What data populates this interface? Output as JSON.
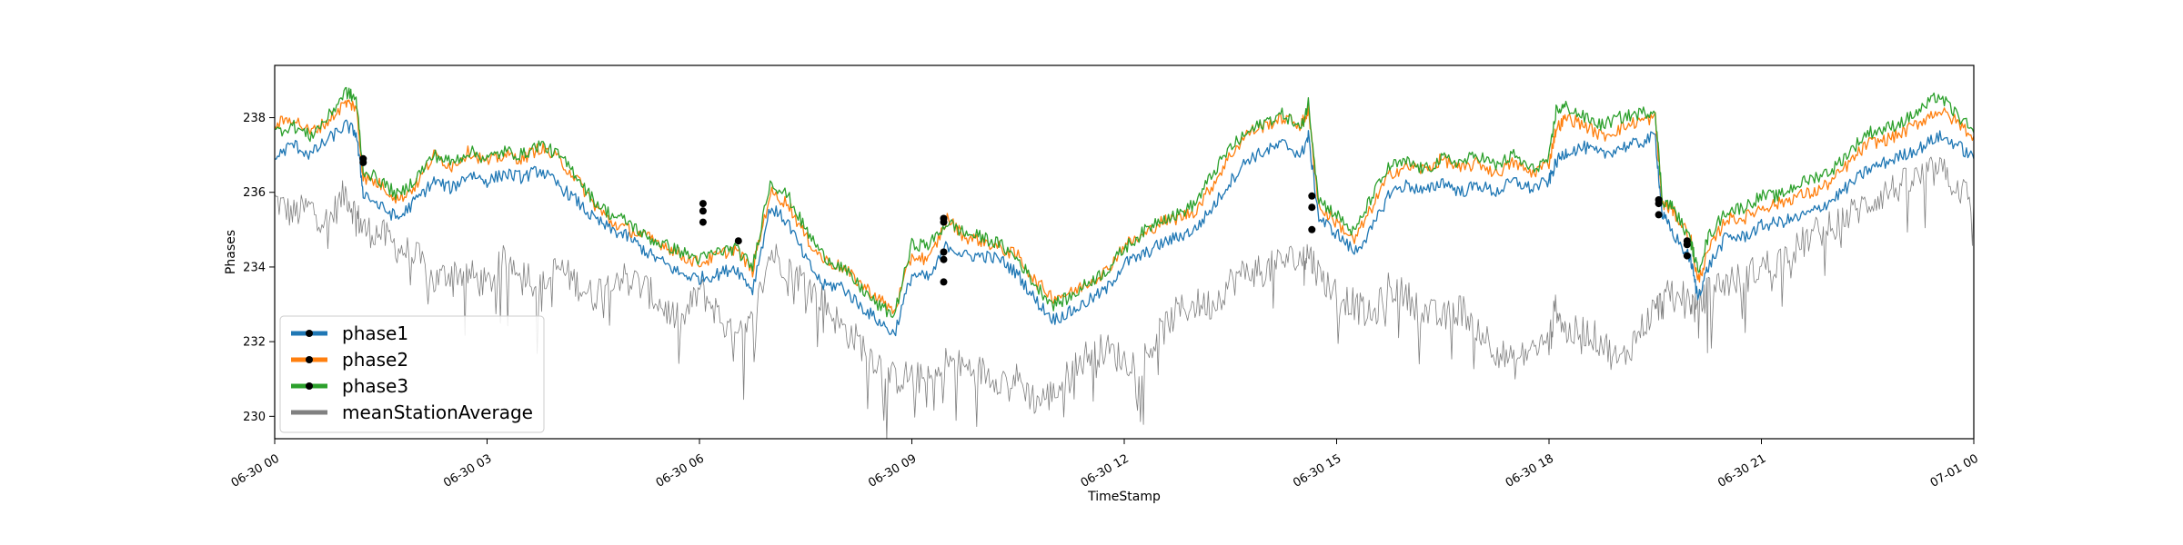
{
  "chart_data": {
    "type": "line",
    "title": "",
    "xlabel": "TimeStamp",
    "ylabel": "Phases",
    "x_range": [
      "06-30 00:00",
      "07-01 00:00"
    ],
    "ylim": [
      229.4,
      239.4
    ],
    "x_ticks": [
      {
        "label": "06-30 00",
        "hour": 0
      },
      {
        "label": "06-30 03",
        "hour": 3
      },
      {
        "label": "06-30 06",
        "hour": 6
      },
      {
        "label": "06-30 09",
        "hour": 9
      },
      {
        "label": "06-30 12",
        "hour": 12
      },
      {
        "label": "06-30 15",
        "hour": 15
      },
      {
        "label": "06-30 18",
        "hour": 18
      },
      {
        "label": "06-30 21",
        "hour": 21
      },
      {
        "label": "07-01 00",
        "hour": 24
      }
    ],
    "y_ticks": [
      230,
      232,
      234,
      236,
      238
    ],
    "grid": false,
    "legend_position": "lower-left",
    "colors": {
      "phase1": "#1f77b4",
      "phase2": "#ff7f0e",
      "phase3": "#2ca02c",
      "meanStationAverage": "#808080",
      "marker": "#000000"
    },
    "series": [
      {
        "name": "phase1",
        "x": [
          0,
          0.25,
          0.5,
          0.75,
          1.0,
          1.15,
          1.25,
          1.5,
          1.75,
          2.0,
          2.25,
          2.5,
          2.75,
          3.0,
          3.25,
          3.5,
          3.75,
          4.0,
          4.25,
          4.5,
          4.75,
          5.0,
          5.25,
          5.5,
          5.75,
          6.0,
          6.25,
          6.5,
          6.75,
          7.0,
          7.25,
          7.5,
          7.75,
          8.0,
          8.25,
          8.5,
          8.75,
          9.0,
          9.25,
          9.5,
          9.75,
          10.0,
          10.25,
          10.5,
          10.75,
          11.0,
          11.25,
          11.5,
          11.75,
          12.0,
          12.25,
          12.5,
          12.75,
          13.0,
          13.25,
          13.5,
          13.75,
          14.0,
          14.25,
          14.5,
          14.6,
          14.75,
          15.0,
          15.25,
          15.5,
          15.75,
          16.0,
          16.25,
          16.5,
          16.75,
          17.0,
          17.25,
          17.5,
          17.75,
          18.0,
          18.1,
          18.25,
          18.5,
          18.75,
          19.0,
          19.25,
          19.5,
          19.6,
          19.75,
          20.0,
          20.1,
          20.25,
          20.5,
          20.75,
          21.0,
          21.25,
          21.5,
          21.75,
          22.0,
          22.25,
          22.5,
          22.75,
          23.0,
          23.25,
          23.5,
          23.75,
          24.0
        ],
        "y": [
          236.9,
          237.3,
          237.0,
          237.4,
          237.8,
          237.6,
          236.0,
          235.6,
          235.3,
          235.8,
          236.3,
          236.1,
          236.5,
          236.3,
          236.5,
          236.4,
          236.6,
          236.2,
          235.8,
          235.3,
          235.0,
          234.8,
          234.4,
          234.1,
          233.8,
          233.7,
          233.8,
          234.0,
          233.4,
          235.6,
          235.2,
          234.2,
          233.5,
          233.5,
          233.0,
          232.6,
          232.2,
          233.8,
          233.7,
          234.6,
          234.3,
          234.3,
          234.2,
          233.8,
          233.1,
          232.6,
          232.8,
          233.1,
          233.4,
          234.1,
          234.3,
          234.6,
          234.8,
          235.0,
          235.6,
          236.3,
          236.9,
          237.1,
          237.3,
          237.0,
          237.5,
          235.3,
          234.9,
          234.4,
          235.0,
          236.0,
          236.2,
          236.0,
          236.3,
          236.0,
          236.2,
          236.0,
          236.3,
          236.1,
          236.3,
          236.8,
          237.1,
          237.2,
          237.0,
          237.2,
          237.3,
          237.5,
          235.4,
          234.9,
          234.2,
          233.2,
          234.0,
          234.8,
          234.8,
          235.1,
          235.2,
          235.3,
          235.5,
          235.8,
          236.2,
          236.6,
          236.8,
          237.0,
          237.2,
          237.5,
          237.3,
          236.9
        ]
      },
      {
        "name": "phase2",
        "x": [
          0,
          0.25,
          0.5,
          0.75,
          1.0,
          1.15,
          1.25,
          1.5,
          1.75,
          2.0,
          2.25,
          2.5,
          2.75,
          3.0,
          3.25,
          3.5,
          3.75,
          4.0,
          4.25,
          4.5,
          4.75,
          5.0,
          5.25,
          5.5,
          5.75,
          6.0,
          6.25,
          6.5,
          6.75,
          7.0,
          7.25,
          7.5,
          7.75,
          8.0,
          8.25,
          8.5,
          8.75,
          9.0,
          9.25,
          9.5,
          9.75,
          10.0,
          10.25,
          10.5,
          10.75,
          11.0,
          11.25,
          11.5,
          11.75,
          12.0,
          12.25,
          12.5,
          12.75,
          13.0,
          13.25,
          13.5,
          13.75,
          14.0,
          14.25,
          14.5,
          14.6,
          14.75,
          15.0,
          15.25,
          15.5,
          15.75,
          16.0,
          16.25,
          16.5,
          16.75,
          17.0,
          17.25,
          17.5,
          17.75,
          18.0,
          18.1,
          18.25,
          18.5,
          18.75,
          19.0,
          19.25,
          19.5,
          19.6,
          19.75,
          20.0,
          20.1,
          20.25,
          20.5,
          20.75,
          21.0,
          21.25,
          21.5,
          21.75,
          22.0,
          22.25,
          22.5,
          22.75,
          23.0,
          23.25,
          23.5,
          23.75,
          24.0
        ],
        "y": [
          237.8,
          238.0,
          237.6,
          237.9,
          238.4,
          238.3,
          236.4,
          236.2,
          235.8,
          236.2,
          237.0,
          236.7,
          237.1,
          236.8,
          237.0,
          236.9,
          237.2,
          236.9,
          236.4,
          235.7,
          235.2,
          235.0,
          234.8,
          234.6,
          234.3,
          234.1,
          234.3,
          234.5,
          233.9,
          236.0,
          235.7,
          234.8,
          234.2,
          234.0,
          233.6,
          233.2,
          232.8,
          234.3,
          234.2,
          235.3,
          234.8,
          234.7,
          234.5,
          234.3,
          233.6,
          233.2,
          233.3,
          233.6,
          233.9,
          234.6,
          234.8,
          235.2,
          235.3,
          235.5,
          236.2,
          237.0,
          237.6,
          237.8,
          238.0,
          237.8,
          238.2,
          235.6,
          235.2,
          234.7,
          235.6,
          236.5,
          236.7,
          236.6,
          236.9,
          236.6,
          236.8,
          236.5,
          236.8,
          236.5,
          236.8,
          237.7,
          238.0,
          237.8,
          237.5,
          237.7,
          237.9,
          238.0,
          235.7,
          235.5,
          234.8,
          233.6,
          234.4,
          235.3,
          235.3,
          235.6,
          235.7,
          235.9,
          236.0,
          236.3,
          236.8,
          237.3,
          237.4,
          237.6,
          237.9,
          238.2,
          237.9,
          237.5
        ]
      },
      {
        "name": "phase3",
        "x": [
          0,
          0.25,
          0.5,
          0.75,
          1.0,
          1.15,
          1.25,
          1.5,
          1.75,
          2.0,
          2.25,
          2.5,
          2.75,
          3.0,
          3.25,
          3.5,
          3.75,
          4.0,
          4.25,
          4.5,
          4.75,
          5.0,
          5.25,
          5.5,
          5.75,
          6.0,
          6.25,
          6.5,
          6.75,
          7.0,
          7.25,
          7.5,
          7.75,
          8.0,
          8.25,
          8.5,
          8.75,
          9.0,
          9.25,
          9.5,
          9.75,
          10.0,
          10.25,
          10.5,
          10.75,
          11.0,
          11.25,
          11.5,
          11.75,
          12.0,
          12.25,
          12.5,
          12.75,
          13.0,
          13.25,
          13.5,
          13.75,
          14.0,
          14.25,
          14.5,
          14.6,
          14.75,
          15.0,
          15.25,
          15.5,
          15.75,
          16.0,
          16.25,
          16.5,
          16.75,
          17.0,
          17.25,
          17.5,
          17.75,
          18.0,
          18.1,
          18.25,
          18.5,
          18.75,
          19.0,
          19.25,
          19.5,
          19.6,
          19.75,
          20.0,
          20.1,
          20.25,
          20.5,
          20.75,
          21.0,
          21.25,
          21.5,
          21.75,
          22.0,
          22.25,
          22.5,
          22.75,
          23.0,
          23.25,
          23.5,
          23.75,
          24.0
        ],
        "y": [
          237.6,
          237.8,
          237.5,
          238.0,
          238.7,
          238.5,
          236.6,
          236.3,
          235.9,
          236.4,
          237.0,
          236.8,
          237.1,
          236.9,
          237.1,
          237.0,
          237.3,
          237.0,
          236.5,
          235.8,
          235.4,
          235.2,
          234.8,
          234.6,
          234.4,
          234.2,
          234.4,
          234.5,
          234.0,
          236.3,
          235.9,
          235.0,
          234.3,
          234.0,
          233.5,
          233.0,
          232.7,
          234.6,
          234.6,
          235.2,
          234.9,
          234.8,
          234.6,
          234.2,
          233.5,
          233.0,
          233.2,
          233.6,
          233.9,
          234.5,
          234.9,
          235.3,
          235.4,
          235.7,
          236.5,
          237.2,
          237.6,
          237.9,
          238.1,
          237.7,
          238.4,
          235.8,
          235.4,
          234.9,
          235.9,
          236.7,
          236.8,
          236.6,
          236.9,
          236.8,
          237.0,
          236.7,
          237.0,
          236.6,
          236.9,
          238.2,
          238.3,
          238.0,
          237.8,
          238.0,
          238.1,
          238.2,
          235.8,
          235.6,
          234.7,
          233.9,
          234.8,
          235.5,
          235.6,
          235.9,
          235.9,
          236.2,
          236.4,
          236.6,
          237.1,
          237.6,
          237.7,
          237.9,
          238.2,
          238.6,
          238.1,
          237.6
        ]
      },
      {
        "name": "meanStationAverage",
        "x": [
          0,
          0.25,
          0.5,
          0.75,
          1.0,
          1.15,
          1.25,
          1.5,
          1.75,
          2.0,
          2.25,
          2.5,
          2.75,
          3.0,
          3.25,
          3.5,
          3.75,
          4.0,
          4.25,
          4.5,
          4.75,
          5.0,
          5.25,
          5.5,
          5.75,
          6.0,
          6.25,
          6.5,
          6.75,
          7.0,
          7.25,
          7.5,
          7.75,
          8.0,
          8.25,
          8.5,
          8.75,
          9.0,
          9.25,
          9.5,
          9.75,
          10.0,
          10.25,
          10.5,
          10.75,
          11.0,
          11.25,
          11.5,
          11.75,
          12.0,
          12.25,
          12.5,
          12.75,
          13.0,
          13.25,
          13.5,
          13.75,
          14.0,
          14.25,
          14.5,
          14.6,
          14.75,
          15.0,
          15.25,
          15.5,
          15.75,
          16.0,
          16.25,
          16.5,
          16.75,
          17.0,
          17.25,
          17.5,
          17.75,
          18.0,
          18.1,
          18.25,
          18.5,
          18.75,
          19.0,
          19.25,
          19.5,
          19.6,
          19.75,
          20.0,
          20.1,
          20.25,
          20.5,
          20.75,
          21.0,
          21.25,
          21.5,
          21.75,
          22.0,
          22.25,
          22.5,
          22.75,
          23.0,
          23.25,
          23.5,
          23.75,
          24.0
        ],
        "y": [
          235.8,
          235.4,
          235.6,
          235.2,
          236.0,
          235.4,
          235.0,
          234.9,
          234.5,
          234.3,
          233.6,
          233.9,
          233.8,
          233.5,
          234.2,
          234.0,
          233.4,
          234.0,
          233.6,
          233.2,
          233.8,
          233.7,
          233.4,
          232.9,
          232.5,
          233.4,
          232.8,
          232.0,
          232.5,
          234.4,
          234.0,
          233.6,
          233.1,
          232.4,
          232.0,
          231.5,
          231.0,
          231.1,
          230.9,
          231.5,
          231.3,
          231.2,
          231.0,
          231.0,
          230.4,
          230.6,
          231.2,
          231.7,
          231.8,
          231.5,
          231.5,
          232.2,
          232.8,
          233.0,
          233.0,
          233.6,
          233.9,
          233.9,
          234.2,
          234.2,
          234.4,
          233.8,
          233.3,
          233.0,
          232.6,
          233.5,
          233.2,
          232.8,
          232.6,
          232.9,
          232.4,
          231.8,
          231.4,
          231.8,
          232.0,
          233.0,
          232.2,
          232.3,
          232.0,
          231.4,
          232.2,
          232.9,
          233.0,
          233.4,
          233.1,
          232.8,
          233.4,
          233.6,
          233.7,
          234.0,
          234.2,
          234.5,
          234.9,
          235.1,
          235.4,
          235.7,
          236.0,
          236.2,
          236.4,
          236.6,
          236.2,
          235.7
        ]
      }
    ],
    "markers": [
      {
        "x": 1.25,
        "y": 236.9
      },
      {
        "x": 1.25,
        "y": 236.8
      },
      {
        "x": 6.05,
        "y": 235.7
      },
      {
        "x": 6.05,
        "y": 235.5
      },
      {
        "x": 6.05,
        "y": 235.2
      },
      {
        "x": 6.55,
        "y": 234.7
      },
      {
        "x": 9.45,
        "y": 235.3
      },
      {
        "x": 9.45,
        "y": 235.2
      },
      {
        "x": 9.45,
        "y": 234.4
      },
      {
        "x": 9.45,
        "y": 234.2
      },
      {
        "x": 9.45,
        "y": 233.6
      },
      {
        "x": 14.65,
        "y": 235.9
      },
      {
        "x": 14.65,
        "y": 235.6
      },
      {
        "x": 14.65,
        "y": 235.0
      },
      {
        "x": 19.55,
        "y": 235.8
      },
      {
        "x": 19.55,
        "y": 235.7
      },
      {
        "x": 19.55,
        "y": 235.4
      },
      {
        "x": 19.95,
        "y": 234.7
      },
      {
        "x": 19.95,
        "y": 234.6
      },
      {
        "x": 19.95,
        "y": 234.3
      }
    ],
    "legend": [
      {
        "label": "phase1",
        "color": "#1f77b4"
      },
      {
        "label": "phase2",
        "color": "#ff7f0e"
      },
      {
        "label": "phase3",
        "color": "#2ca02c"
      },
      {
        "label": "meanStationAverage",
        "color": "#808080"
      }
    ]
  }
}
